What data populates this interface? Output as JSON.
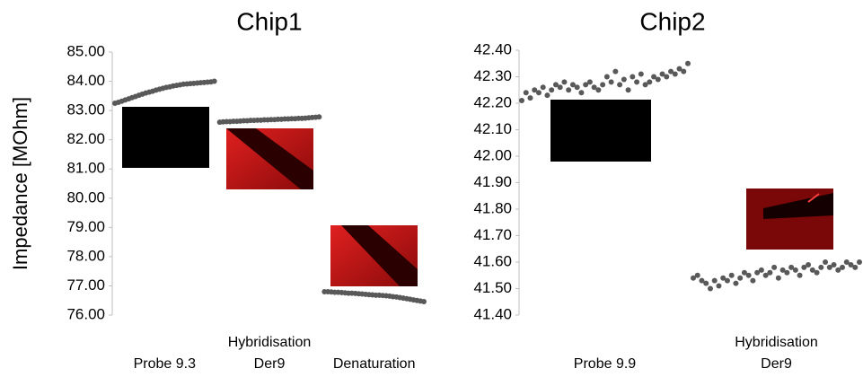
{
  "chart_data": [
    {
      "type": "scatter",
      "title": "Chip1",
      "y_label": "Impedance [MOhm]",
      "categories": [
        "Probe 9.3",
        "Hybridisation\nDer9",
        "Denaturation"
      ],
      "ylim": [
        76,
        85
      ],
      "yticks": [
        {
          "value": 76,
          "label": "76.00"
        },
        {
          "value": 77,
          "label": "77.00"
        },
        {
          "value": 78,
          "label": "78.00"
        },
        {
          "value": 79,
          "label": "79.00"
        },
        {
          "value": 80,
          "label": "80.00"
        },
        {
          "value": 81,
          "label": "81.00"
        },
        {
          "value": 82,
          "label": "82.00"
        },
        {
          "value": 83,
          "label": "83.00"
        },
        {
          "value": 84,
          "label": "84.00"
        },
        {
          "value": 85,
          "label": "85.00"
        }
      ],
      "series": [
        {
          "color": "#595959",
          "values": [
            83.25,
            83.28,
            83.32,
            83.36,
            83.4,
            83.44,
            83.48,
            83.52,
            83.56,
            83.6,
            83.63,
            83.66,
            83.7,
            83.73,
            83.76,
            83.79,
            83.81,
            83.84,
            83.86,
            83.88,
            83.9,
            83.91,
            83.92,
            83.93,
            83.94,
            83.95,
            83.96,
            83.97,
            83.98,
            84.0
          ]
        },
        {
          "color": "#595959",
          "values": [
            82.6,
            82.61,
            82.62,
            82.62,
            82.63,
            82.63,
            82.64,
            82.65,
            82.65,
            82.66,
            82.66,
            82.67,
            82.67,
            82.68,
            82.68,
            82.69,
            82.69,
            82.7,
            82.7,
            82.71,
            82.71,
            82.72,
            82.72,
            82.73,
            82.73,
            82.74,
            82.75,
            82.76,
            82.77,
            82.78
          ]
        },
        {
          "color": "#595959",
          "values": [
            76.8,
            76.8,
            76.79,
            76.78,
            76.78,
            76.77,
            76.76,
            76.75,
            76.75,
            76.74,
            76.73,
            76.72,
            76.71,
            76.7,
            76.69,
            76.68,
            76.68,
            76.67,
            76.66,
            76.65,
            76.63,
            76.62,
            76.6,
            76.58,
            76.56,
            76.54,
            76.52,
            76.5,
            76.48,
            76.46
          ]
        }
      ]
    },
    {
      "type": "scatter",
      "title": "Chip2",
      "categories": [
        "Probe 9.9",
        "Hybridisation\nDer9"
      ],
      "ylim": [
        41.4,
        42.4
      ],
      "yticks": [
        {
          "value": 41.4,
          "label": "41.40"
        },
        {
          "value": 41.5,
          "label": "41.50"
        },
        {
          "value": 41.6,
          "label": "41.60"
        },
        {
          "value": 41.7,
          "label": "41.70"
        },
        {
          "value": 41.8,
          "label": "41.80"
        },
        {
          "value": 41.9,
          "label": "41.90"
        },
        {
          "value": 42,
          "label": "42.00"
        },
        {
          "value": 42.1,
          "label": "42.10"
        },
        {
          "value": 42.2,
          "label": "42.20"
        },
        {
          "value": 42.3,
          "label": "42.30"
        },
        {
          "value": 42.4,
          "label": "42.40"
        }
      ],
      "series": [
        {
          "color": "#595959",
          "values": [
            42.21,
            42.24,
            42.22,
            42.25,
            42.24,
            42.26,
            42.23,
            42.25,
            42.27,
            42.26,
            42.28,
            42.25,
            42.27,
            42.26,
            42.24,
            42.27,
            42.28,
            42.26,
            42.25,
            42.27,
            42.3,
            42.28,
            42.32,
            42.27,
            42.29,
            42.25,
            42.3,
            42.28,
            42.31,
            42.27,
            42.28,
            42.3,
            42.29,
            42.31,
            42.3,
            42.32,
            42.31,
            42.33,
            42.32,
            42.35
          ]
        },
        {
          "color": "#595959",
          "values": [
            41.54,
            41.55,
            41.53,
            41.52,
            41.5,
            41.53,
            41.51,
            41.54,
            41.53,
            41.55,
            41.52,
            41.54,
            41.56,
            41.55,
            41.53,
            41.56,
            41.57,
            41.55,
            41.56,
            41.58,
            41.54,
            41.57,
            41.56,
            41.58,
            41.57,
            41.55,
            41.58,
            41.59,
            41.57,
            41.56,
            41.58,
            41.6,
            41.58,
            41.59,
            41.57,
            41.58,
            41.6,
            41.59,
            41.58,
            41.6
          ]
        }
      ]
    }
  ]
}
